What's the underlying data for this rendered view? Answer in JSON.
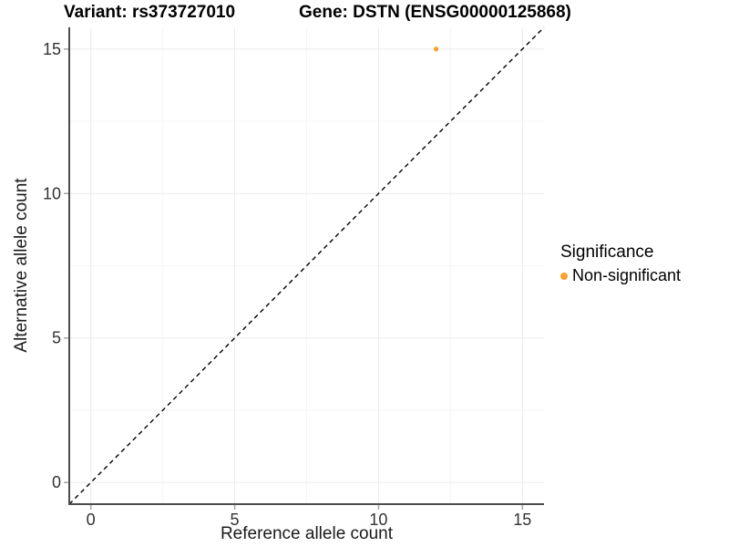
{
  "chart_data": {
    "type": "scatter",
    "title_left": "Variant: rs373727010",
    "title_right": "Gene: DSTN (ENSG00000125868)",
    "xlabel": "Reference allele count",
    "ylabel": "Alternative allele count",
    "xlim": [
      -0.75,
      15.75
    ],
    "ylim": [
      -0.75,
      15.75
    ],
    "x_ticks": [
      0,
      5,
      10,
      15
    ],
    "y_ticks": [
      0,
      5,
      10,
      15
    ],
    "x_tick_labels": [
      "0",
      "5",
      "10",
      "15"
    ],
    "y_tick_labels": [
      "0",
      "5",
      "10",
      "15"
    ],
    "minor_ticks": [
      2.5,
      7.5,
      12.5
    ],
    "grid": true,
    "reference_line": {
      "type": "identity",
      "style": "dashed",
      "color": "#000000"
    },
    "series": [
      {
        "name": "Non-significant",
        "color": "#F9A12B",
        "points": [
          {
            "x": 12,
            "y": 15
          }
        ]
      }
    ],
    "legend": {
      "title": "Significance",
      "position": "right",
      "entries": [
        {
          "label": "Non-significant",
          "color": "#F9A12B"
        }
      ]
    }
  },
  "colors": {
    "background": "#ffffff",
    "axis_line": "#4d4d4d",
    "tick_mark": "#a6a6a6",
    "grid_major": "#ebebeb",
    "grid_minor": "#f5f5f5",
    "tick_text": "#333333",
    "point": "#F9A12B"
  }
}
